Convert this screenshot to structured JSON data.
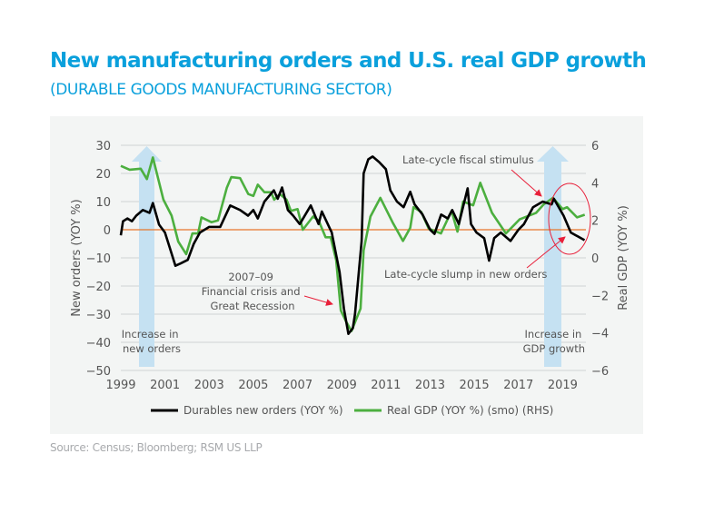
{
  "title": "New manufacturing orders and U.S. real GDP growth",
  "subtitle": "(DURABLE GOODS MANUFACTURING SECTOR)",
  "source": "Source: Census; Bloomberg; RSM US LLP",
  "colors": {
    "title": "#0aa0dc",
    "durables": "#000000",
    "gdp": "#4caf3f",
    "zero_line": "#e8762b",
    "arrow_fill": "#c5e1f2",
    "annotation": "#e8203a",
    "panel": "#f3f5f4"
  },
  "chart_data": {
    "type": "line",
    "xlabel": "",
    "ylabel": "New orders (YOY %)",
    "ylabel_right": "Real GDP (YOY %)",
    "xlim": [
      1999,
      2020
    ],
    "ylim": [
      -50,
      30
    ],
    "ylim_right": [
      -6,
      6
    ],
    "grid": true,
    "legend_position": "bottom",
    "x_ticks": [
      "1999",
      "2001",
      "2003",
      "2005",
      "2007",
      "2009",
      "2011",
      "2013",
      "2015",
      "2017",
      "2019"
    ],
    "y_ticks": [
      "30",
      "20",
      "10",
      "0",
      "−10",
      "−20",
      "−30",
      "−40",
      "−50"
    ],
    "y_ticks_right": [
      "6",
      "4",
      "2",
      "0",
      "−2",
      "−4",
      "−6"
    ],
    "series": [
      {
        "name": "Durables new orders (YOY %)",
        "axis": "left",
        "x": [
          1999.0,
          1999.1,
          1999.3,
          1999.5,
          1999.7,
          2000.0,
          2000.3,
          2000.45,
          2000.73,
          2001.0,
          2001.2,
          2001.47,
          2001.7,
          2002.03,
          2002.3,
          2002.58,
          2003.0,
          2003.5,
          2003.95,
          2004.4,
          2004.76,
          2005.0,
          2005.2,
          2005.5,
          2005.93,
          2006.1,
          2006.3,
          2006.56,
          2006.8,
          2007.1,
          2007.6,
          2007.95,
          2008.1,
          2008.55,
          2008.9,
          2009.1,
          2009.3,
          2009.5,
          2009.6,
          2009.9,
          2009.99,
          2010.2,
          2010.4,
          2010.7,
          2011.0,
          2011.2,
          2011.5,
          2011.8,
          2012.1,
          2012.3,
          2012.66,
          2013.0,
          2013.2,
          2013.5,
          2013.8,
          2014.0,
          2014.3,
          2014.7,
          2014.85,
          2015.1,
          2015.45,
          2015.67,
          2015.9,
          2016.2,
          2016.64,
          2017.0,
          2017.25,
          2017.66,
          2018.1,
          2018.5,
          2018.6,
          2019.04,
          2019.37,
          2019.6,
          2019.99
        ],
        "y": [
          -2,
          3,
          4,
          3,
          5,
          7,
          6,
          9.5,
          1.8,
          -1,
          -6,
          -12.8,
          -12,
          -10.7,
          -5,
          -1,
          1,
          1,
          8.6,
          7,
          5,
          7,
          4,
          10,
          14,
          11,
          15,
          7,
          5,
          2,
          8.6,
          2,
          6.5,
          -1,
          -15,
          -28,
          -37,
          -35,
          -30,
          -4,
          20,
          25,
          26,
          24,
          21.5,
          14,
          10,
          8,
          13.5,
          9,
          5.4,
          0,
          -1.5,
          5.4,
          4,
          7,
          2,
          14.7,
          2,
          -1,
          -3,
          -11,
          -3,
          -1,
          -4,
          0,
          2,
          8,
          10,
          9,
          11,
          5,
          -1,
          -2,
          -3.7
        ]
      },
      {
        "name": "Real GDP (YOY %) (smo) (RHS)",
        "axis": "right",
        "x": [
          1999.0,
          1999.4,
          1999.9,
          2000.18,
          2000.45,
          2000.93,
          2001.3,
          2001.6,
          2001.96,
          2002.24,
          2002.5,
          2002.65,
          2003.1,
          2003.4,
          2003.8,
          2004.0,
          2004.4,
          2004.77,
          2005.0,
          2005.2,
          2005.5,
          2005.8,
          2005.94,
          2006.2,
          2006.5,
          2006.7,
          2007.0,
          2007.24,
          2007.7,
          2007.95,
          2008.27,
          2008.5,
          2008.75,
          2008.96,
          2009.2,
          2009.44,
          2009.85,
          2009.99,
          2010.3,
          2010.75,
          2011.3,
          2011.77,
          2012.1,
          2012.25,
          2012.6,
          2012.94,
          2013.49,
          2013.97,
          2014.24,
          2014.5,
          2014.95,
          2015.27,
          2015.8,
          2016.43,
          2017.05,
          2017.8,
          2018.15,
          2018.56,
          2019.0,
          2019.2,
          2019.65,
          2020.0
        ],
        "y": [
          4.9,
          4.7,
          4.75,
          4.2,
          5.35,
          3.1,
          2.25,
          0.87,
          0.2,
          1.3,
          1.3,
          2.16,
          1.9,
          2.0,
          3.74,
          4.3,
          4.25,
          3.4,
          3.3,
          3.9,
          3.5,
          3.5,
          3.1,
          3.4,
          3.1,
          2.5,
          2.6,
          1.5,
          2.2,
          2.0,
          1.1,
          1.1,
          -0.13,
          -2.8,
          -3.4,
          -3.9,
          -2.7,
          0.4,
          2.2,
          3.2,
          1.9,
          0.9,
          1.6,
          2.7,
          2.45,
          1.56,
          1.3,
          2.5,
          1.4,
          3.0,
          2.8,
          4.0,
          2.4,
          1.3,
          2.05,
          2.4,
          2.86,
          3.2,
          2.6,
          2.7,
          2.16,
          2.3
        ]
      }
    ],
    "annotations": {
      "crisis": [
        "2007–09",
        "Financial crisis and",
        "Great Recession"
      ],
      "increase_orders": [
        "Increase in",
        "new orders"
      ],
      "increase_gdp": [
        "Increase in",
        "GDP growth"
      ],
      "fiscal": "Late-cycle fiscal stimulus",
      "slump": "Late-cycle slump in new orders"
    }
  }
}
